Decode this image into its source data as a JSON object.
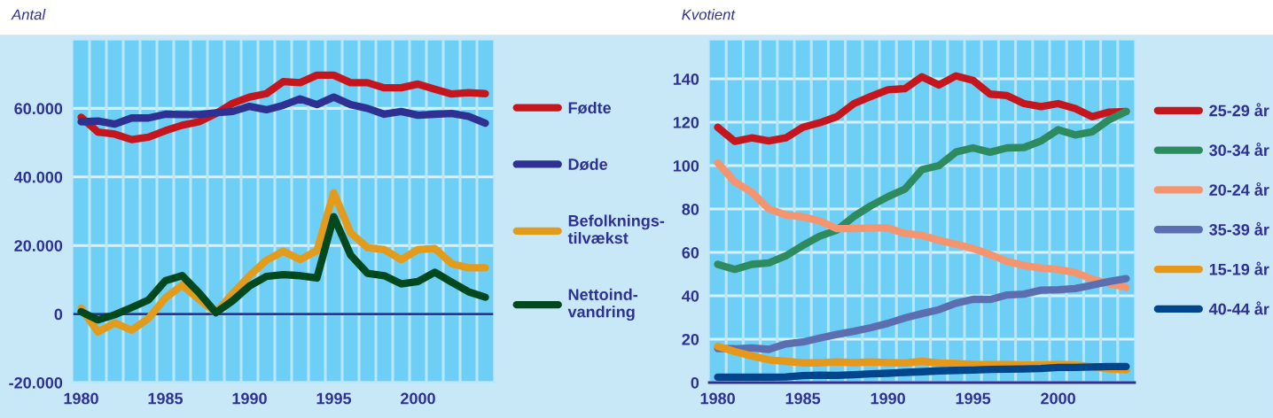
{
  "chart_data": [
    {
      "type": "line",
      "ylabel": "Antal",
      "x": [
        1980,
        1981,
        1982,
        1983,
        1984,
        1985,
        1986,
        1987,
        1988,
        1989,
        1990,
        1991,
        1992,
        1993,
        1994,
        1995,
        1996,
        1997,
        1998,
        1999,
        2000,
        2001,
        2002,
        2003,
        2004
      ],
      "xlim": [
        1979.5,
        2004.5
      ],
      "xticks": [
        1980,
        1985,
        1990,
        1995,
        2000,
        {
          "value": 1980.5,
          "label": null
        },
        {
          "value": 1981.5,
          "label": null
        },
        {
          "value": 1982.5,
          "label": null
        },
        {
          "value": 1983.5,
          "label": null
        },
        {
          "value": 1984.5,
          "label": null
        },
        {
          "value": 1985.5,
          "label": null
        },
        {
          "value": 1986.5,
          "label": null
        },
        {
          "value": 1987.5,
          "label": null
        },
        {
          "value": 1988.5,
          "label": null
        },
        {
          "value": 1989.5,
          "label": null
        },
        {
          "value": 1990.5,
          "label": null
        },
        {
          "value": 1991.5,
          "label": null
        },
        {
          "value": 1992.5,
          "label": null
        },
        {
          "value": 1993.5,
          "label": null
        },
        {
          "value": 1994.5,
          "label": null
        },
        {
          "value": 1995.5,
          "label": null
        },
        {
          "value": 1996.5,
          "label": null
        },
        {
          "value": 1997.5,
          "label": null
        },
        {
          "value": 1998.5,
          "label": null
        },
        {
          "value": 1999.5,
          "label": null
        },
        {
          "value": 2000.5,
          "label": null
        },
        {
          "value": 2001.5,
          "label": null
        },
        {
          "value": 2002.5,
          "label": null
        },
        {
          "value": 2003.5,
          "label": null
        }
      ],
      "ylim": [
        -20000,
        80000
      ],
      "yticks": [
        {
          "value": -20000,
          "label": "-20.000"
        },
        0,
        {
          "value": 20000,
          "label": "20.000"
        },
        {
          "value": 40000,
          "label": "40.000"
        },
        {
          "value": 60000,
          "label": "60.000"
        }
      ],
      "grid": true,
      "legend": "right",
      "marker": "none",
      "line_style": "solid",
      "ref_lines": [
        {
          "axis": "y",
          "value": 0,
          "color": "#2e3192"
        }
      ],
      "series": [
        {
          "name": "Fødte",
          "color": "#c4161c",
          "values": [
            57400,
            53100,
            52500,
            50900,
            51600,
            53500,
            55100,
            56100,
            58500,
            61500,
            63300,
            64300,
            67800,
            67500,
            69700,
            69700,
            67500,
            67500,
            66000,
            66000,
            67100,
            65600,
            64200,
            64600,
            64300
          ]
        },
        {
          "name": "Døde",
          "color": "#2e3192",
          "values": [
            56100,
            56300,
            55400,
            57200,
            57200,
            58300,
            58200,
            58200,
            58700,
            59100,
            60600,
            59600,
            60900,
            62800,
            61100,
            63300,
            61100,
            60000,
            58300,
            59100,
            58000,
            58300,
            58500,
            57700,
            55700
          ]
        },
        {
          "name": "Befolknings-\ntilvækst",
          "color": "#e39b1b",
          "values": [
            1700,
            -5200,
            -2600,
            -4700,
            -1300,
            4700,
            8400,
            4300,
            400,
            6000,
            11200,
            15700,
            18300,
            15900,
            18500,
            35400,
            23700,
            19400,
            18800,
            15900,
            18800,
            19100,
            14700,
            13500,
            13500
          ]
        },
        {
          "name": "Nettoind-\nvandring",
          "color": "#00491e",
          "values": [
            700,
            -1700,
            -200,
            1900,
            4100,
            9700,
            11200,
            6200,
            400,
            3900,
            8200,
            11000,
            11500,
            11200,
            10500,
            28400,
            17200,
            11900,
            11200,
            8800,
            9500,
            12200,
            9300,
            6500,
            4900
          ]
        }
      ]
    },
    {
      "type": "line",
      "ylabel": "Kvotient",
      "x": [
        1980,
        1981,
        1982,
        1983,
        1984,
        1985,
        1986,
        1987,
        1988,
        1989,
        1990,
        1991,
        1992,
        1993,
        1994,
        1995,
        1996,
        1997,
        1998,
        1999,
        2000,
        2001,
        2002,
        2003,
        2004
      ],
      "xlim": [
        1979.5,
        2004.5
      ],
      "xticks": [
        1980,
        1985,
        1990,
        1995,
        2000,
        {
          "value": 1980.5,
          "label": null
        },
        {
          "value": 1981.5,
          "label": null
        },
        {
          "value": 1982.5,
          "label": null
        },
        {
          "value": 1983.5,
          "label": null
        },
        {
          "value": 1984.5,
          "label": null
        },
        {
          "value": 1985.5,
          "label": null
        },
        {
          "value": 1986.5,
          "label": null
        },
        {
          "value": 1987.5,
          "label": null
        },
        {
          "value": 1988.5,
          "label": null
        },
        {
          "value": 1989.5,
          "label": null
        },
        {
          "value": 1990.5,
          "label": null
        },
        {
          "value": 1991.5,
          "label": null
        },
        {
          "value": 1992.5,
          "label": null
        },
        {
          "value": 1993.5,
          "label": null
        },
        {
          "value": 1994.5,
          "label": null
        },
        {
          "value": 1995.5,
          "label": null
        },
        {
          "value": 1996.5,
          "label": null
        },
        {
          "value": 1997.5,
          "label": null
        },
        {
          "value": 1998.5,
          "label": null
        },
        {
          "value": 1999.5,
          "label": null
        },
        {
          "value": 2000.5,
          "label": null
        },
        {
          "value": 2001.5,
          "label": null
        },
        {
          "value": 2002.5,
          "label": null
        },
        {
          "value": 2003.5,
          "label": null
        }
      ],
      "ylim": [
        0,
        158
      ],
      "yticks": [
        0,
        20,
        40,
        60,
        80,
        100,
        120,
        140
      ],
      "grid": true,
      "legend": "right",
      "marker": "none",
      "line_style": "solid",
      "series": [
        {
          "name": "25-29 år",
          "color": "#c4161c",
          "values": [
            117.7,
            111.2,
            112.8,
            111.4,
            112.8,
            117.7,
            119.8,
            122.6,
            128.6,
            131.9,
            135,
            135.5,
            141,
            137.2,
            141.4,
            139.3,
            133,
            132.3,
            128.6,
            127.2,
            128.6,
            126.4,
            122.6,
            124.7,
            125
          ]
        },
        {
          "name": "30-34 år",
          "color": "#2e8b5f",
          "values": [
            54.5,
            52.2,
            54.5,
            55.2,
            58.4,
            63.2,
            67.5,
            70.3,
            76.6,
            81.5,
            85.7,
            89.2,
            98.2,
            100,
            106.3,
            108.2,
            106.2,
            108.2,
            108.4,
            111.4,
            116.6,
            114.2,
            115.6,
            121.2,
            125
          ]
        },
        {
          "name": "20-24 år",
          "color": "#f4956f",
          "values": [
            101.3,
            92.6,
            87.8,
            80.1,
            77.3,
            76.4,
            74.5,
            71,
            71,
            71.3,
            71.3,
            68.7,
            67.9,
            65.6,
            63.8,
            61.8,
            59.1,
            55.9,
            53.9,
            52.8,
            52.1,
            50.8,
            47.7,
            45.6,
            43.9
          ]
        },
        {
          "name": "35-39 år",
          "color": "#5b6fb0",
          "values": [
            15.7,
            15.6,
            16,
            15.3,
            17.8,
            18.7,
            20.5,
            22.2,
            23.6,
            25.3,
            27.3,
            29.8,
            31.8,
            33.6,
            36.6,
            38.4,
            38.3,
            40.4,
            40.8,
            42.6,
            42.8,
            43.3,
            44.9,
            46.6,
            47.9
          ]
        },
        {
          "name": "15-19 år",
          "color": "#e5981a",
          "values": [
            16.7,
            14.3,
            12.3,
            10.5,
            9.8,
            9.1,
            9.1,
            9.5,
            9.2,
            9.5,
            9.2,
            9,
            9.8,
            9,
            8.8,
            8.4,
            8.3,
            8.4,
            8.1,
            8.1,
            8.4,
            8.1,
            7.4,
            6.3,
            5.9
          ]
        },
        {
          "name": "40-44 år",
          "color": "#00468c",
          "values": [
            2.5,
            2.5,
            2.5,
            2.5,
            2.6,
            3.2,
            3.4,
            3.3,
            3.6,
            4,
            4.3,
            4.7,
            5,
            5.4,
            5.6,
            5.8,
            6.1,
            6.2,
            6.3,
            6.5,
            7,
            7,
            7.2,
            7.4,
            7.4
          ]
        }
      ]
    }
  ]
}
